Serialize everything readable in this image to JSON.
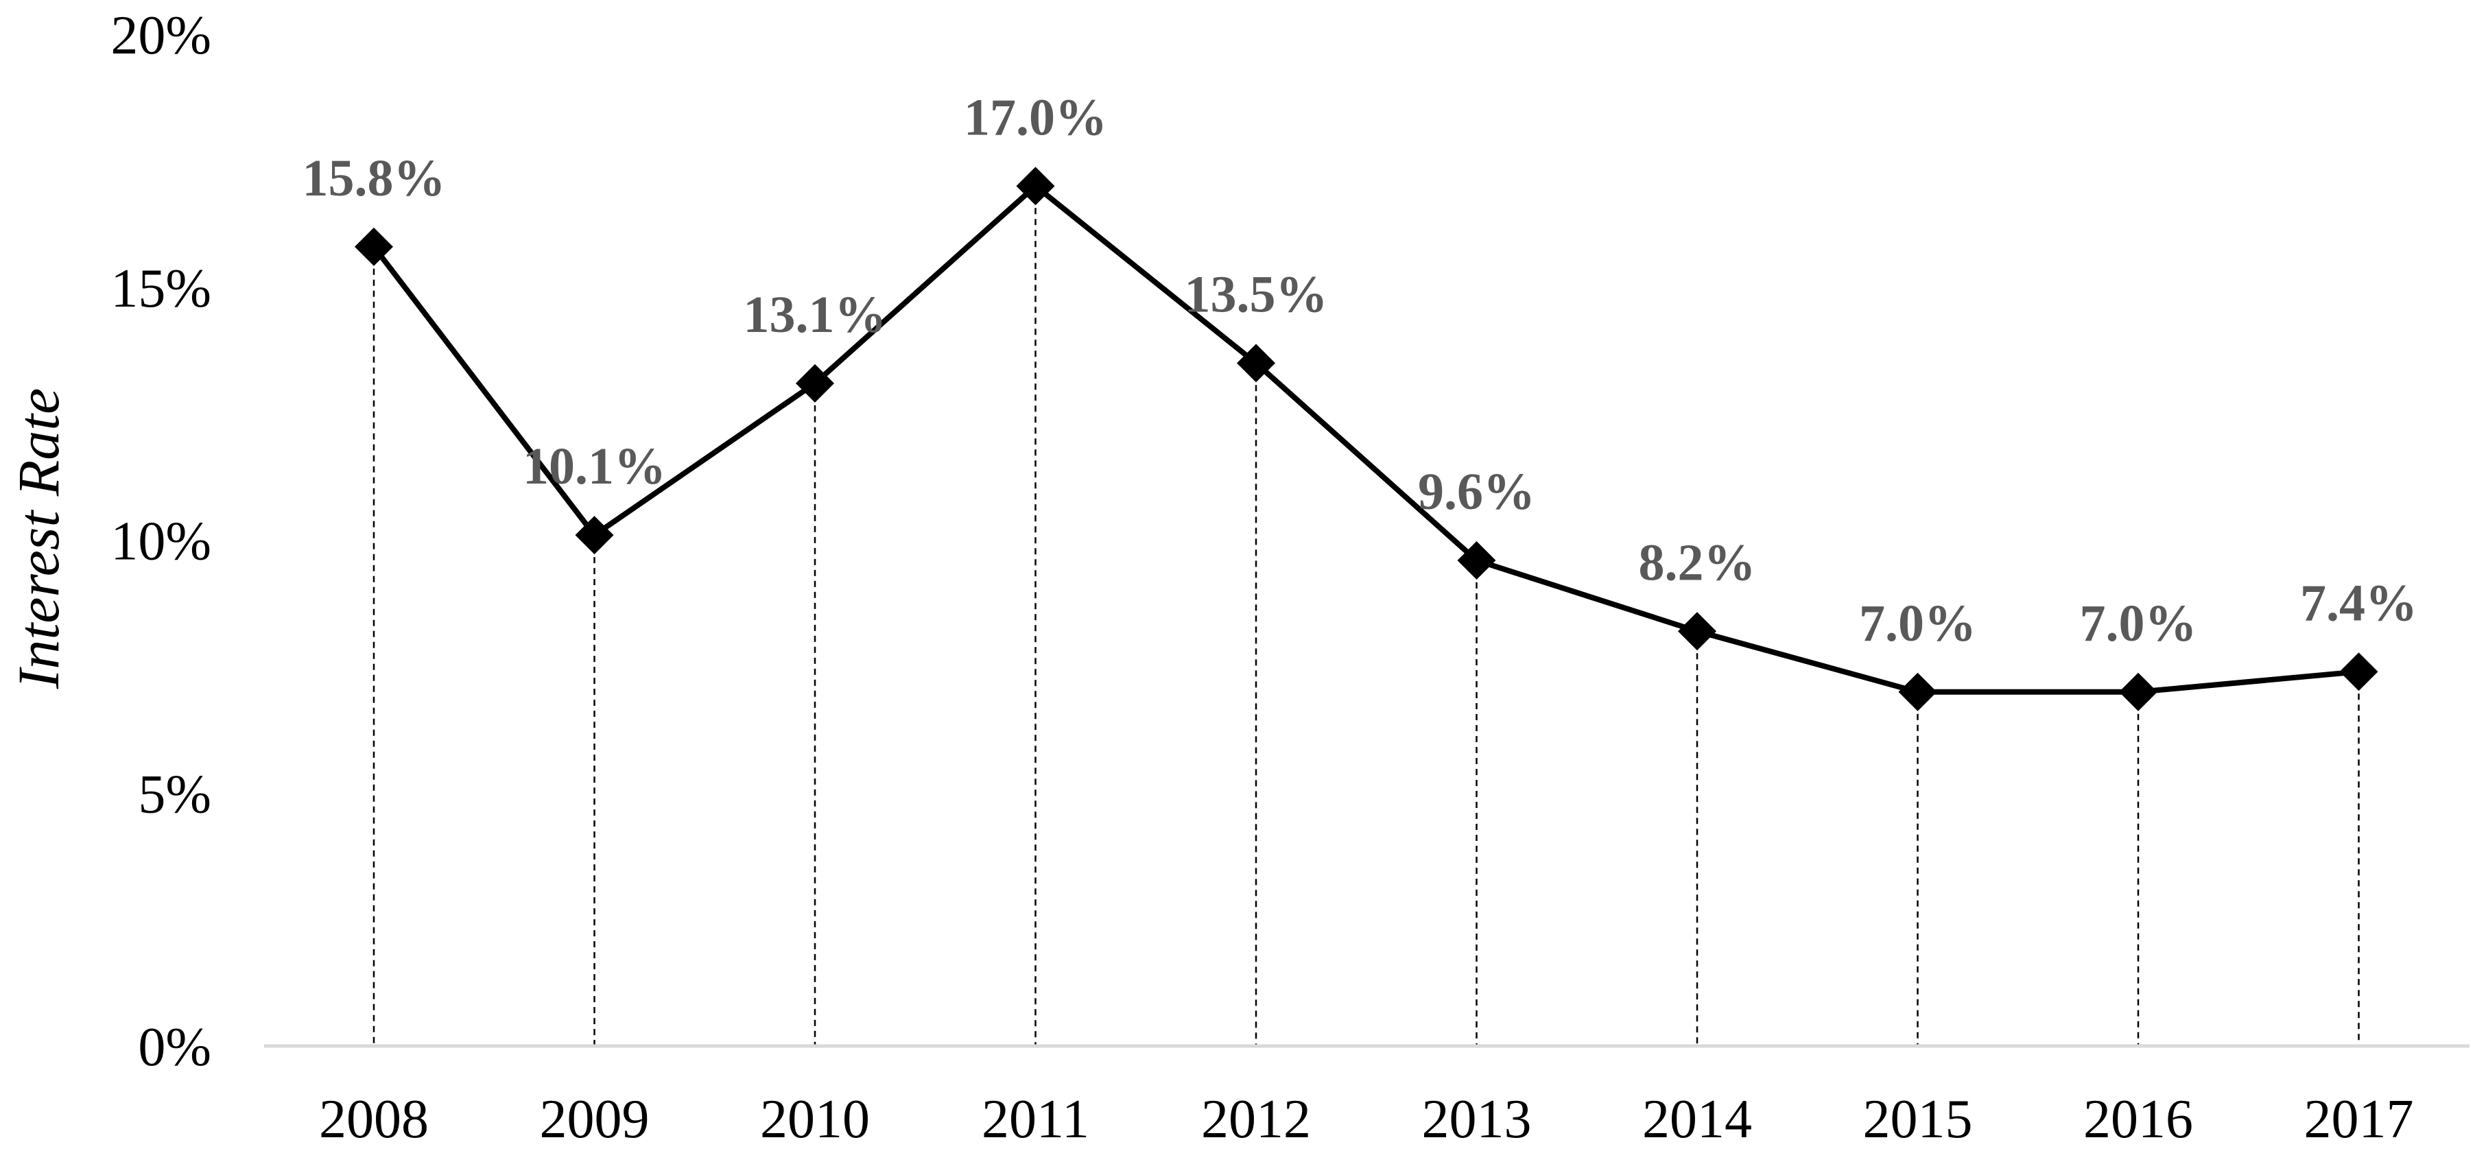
{
  "chart_data": {
    "type": "line",
    "title": "",
    "xlabel": "",
    "ylabel": "Interest Rate",
    "categories": [
      "2008",
      "2009",
      "2010",
      "2011",
      "2012",
      "2013",
      "2014",
      "2015",
      "2016",
      "2017"
    ],
    "series": [
      {
        "values": [
          15.8,
          10.1,
          13.1,
          17.0,
          13.5,
          9.6,
          8.2,
          7.0,
          7.0,
          7.4
        ],
        "data_labels": [
          "15.8%",
          "10.1%",
          "13.1%",
          "17.0%",
          "13.5%",
          "9.6%",
          "8.2%",
          "7.0%",
          "7.0%",
          "7.4%"
        ],
        "marker": "diamond",
        "color": "#000000"
      }
    ],
    "ylim": [
      0,
      20
    ],
    "yticks": [
      0,
      5,
      10,
      15,
      20
    ],
    "ytick_labels": [
      "0%",
      "5%",
      "10%",
      "15%",
      "20%"
    ],
    "grid": false,
    "drop_lines": true,
    "legend": "none",
    "colors": {
      "line": "#000000",
      "marker": "#000000",
      "data_label": "#595959",
      "axis": "#d9d9d9",
      "drop_line": "#000000"
    }
  }
}
